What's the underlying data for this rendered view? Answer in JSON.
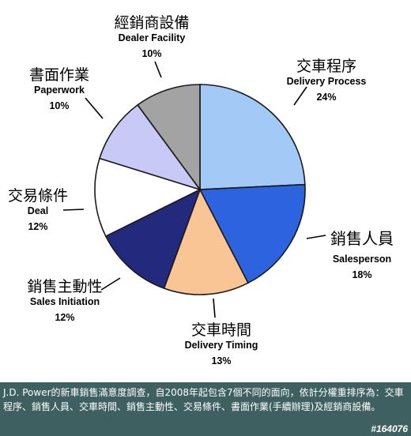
{
  "chart_data": {
    "type": "pie",
    "slices": [
      {
        "zh": "交車程序",
        "en": "Delivery Process",
        "pct_label": "24%",
        "value": 24,
        "color": "#a3c9f7"
      },
      {
        "zh": "銷售人員",
        "en": "Salesperson",
        "pct_label": "18%",
        "value": 18,
        "color": "#2e63e0"
      },
      {
        "zh": "交車時間",
        "en": "Delivery Timing",
        "pct_label": "13%",
        "value": 13,
        "color": "#f9c594"
      },
      {
        "zh": "銷售主動性",
        "en": "Sales Initiation",
        "pct_label": "12%",
        "value": 12,
        "color": "#232a7e"
      },
      {
        "zh": "交易條件",
        "en": "Deal",
        "pct_label": "12%",
        "value": 12,
        "color": "#ffffff"
      },
      {
        "zh": "書面作業",
        "en": "Paperwork",
        "pct_label": "10%",
        "value": 10,
        "color": "#c9c9f7"
      },
      {
        "zh": "經銷商設備",
        "en": "Dealer Facility",
        "pct_label": "10%",
        "value": 10,
        "color": "#a3a3a3"
      }
    ]
  },
  "caption": "J.D. Power的新車銷售滿意度調查，自2008年起包含7個不同的面向，依計分權重排序為：交車程序、銷售人員、交車時間、銷售主動性、交易條件、書面作業(手續辦理)及經銷商設備。",
  "watermark": "#164076"
}
